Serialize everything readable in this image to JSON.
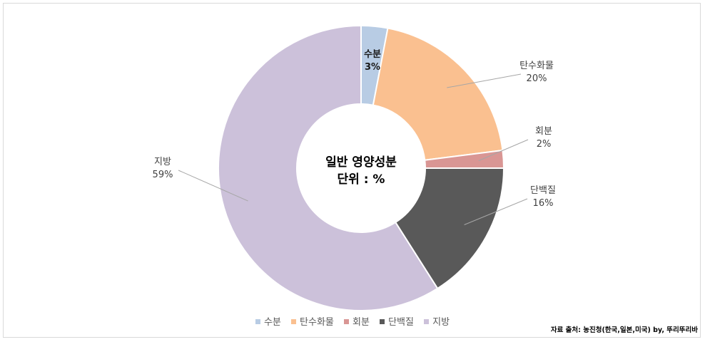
{
  "chart_data": {
    "type": "pie",
    "style": "donut",
    "center_text": [
      "일반 영양성분",
      "단위 : %"
    ],
    "categories": [
      "수분",
      "탄수화물",
      "회분",
      "단백질",
      "지방"
    ],
    "values": [
      3,
      20,
      2,
      16,
      59
    ],
    "labels": [
      "3%",
      "20%",
      "2%",
      "16%",
      "59%"
    ],
    "colors": [
      "#b8cce4",
      "#fac090",
      "#d99694",
      "#595959",
      "#ccc1da"
    ],
    "legend_position": "bottom"
  },
  "source": "자료 출처: 농진청(한국,일본,미국) by, 뚜리뚜리바"
}
